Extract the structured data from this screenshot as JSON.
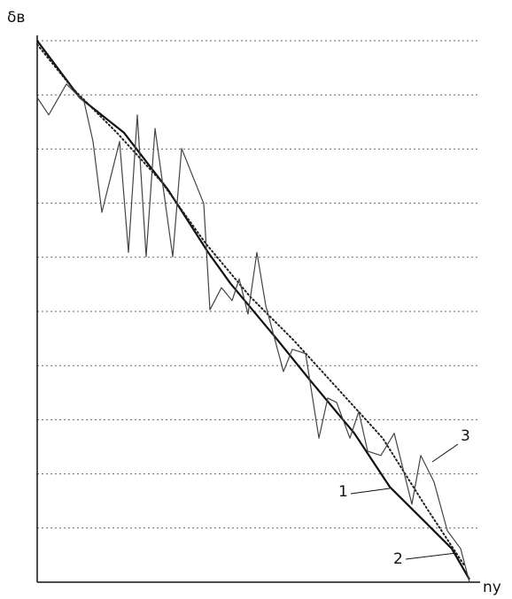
{
  "chart_data": {
    "type": "line",
    "y_label": "δв",
    "x_label": "nу",
    "xlim": [
      0,
      500
    ],
    "ylim": [
      0,
      10
    ],
    "yticks": [
      1,
      2,
      3,
      4,
      5,
      6,
      7,
      8,
      9,
      10
    ],
    "grid": true,
    "series": [
      {
        "name": "1",
        "color": "#111111",
        "style": "solid",
        "width": 2.2,
        "x": [
          0,
          48,
          98,
          148,
          193,
          218,
          268,
          308,
          358,
          398,
          438,
          468,
          488
        ],
        "values": [
          10.0,
          8.95,
          8.3,
          7.24,
          6.09,
          5.52,
          4.54,
          3.73,
          2.75,
          1.76,
          1.11,
          0.62,
          0.05
        ]
      },
      {
        "name": "2",
        "color": "#222222",
        "style": "dotted",
        "width": 2,
        "x": [
          0,
          40,
          90,
          140,
          190,
          240,
          290,
          340,
          390,
          440,
          483
        ],
        "values": [
          9.93,
          9.12,
          8.3,
          7.4,
          6.26,
          5.28,
          4.46,
          3.56,
          2.66,
          1.36,
          0.29
        ]
      },
      {
        "name": "3",
        "color": "#444444",
        "style": "solid",
        "width": 1.2,
        "x": [
          0,
          13,
          33,
          53,
          63,
          73,
          93,
          103,
          113,
          123,
          133,
          153,
          163,
          188,
          195,
          208,
          220,
          228,
          238,
          248,
          258,
          278,
          288,
          303,
          318,
          328,
          338,
          353,
          363,
          373,
          388,
          403,
          423,
          433,
          448,
          463,
          478,
          488
        ],
        "values": [
          8.95,
          8.63,
          9.2,
          8.87,
          8.14,
          6.83,
          8.14,
          6.09,
          8.63,
          6.01,
          8.38,
          6.01,
          8.01,
          6.99,
          5.03,
          5.44,
          5.2,
          5.6,
          4.95,
          6.09,
          5.11,
          3.89,
          4.3,
          4.22,
          2.66,
          3.4,
          3.32,
          2.66,
          3.15,
          2.42,
          2.34,
          2.75,
          1.44,
          2.34,
          1.85,
          0.95,
          0.62,
          0
        ]
      }
    ]
  }
}
